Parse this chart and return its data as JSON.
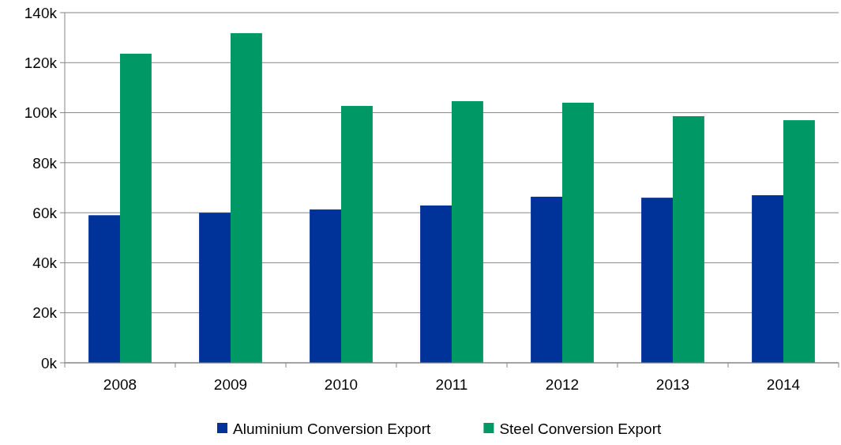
{
  "chart_data": {
    "type": "bar",
    "categories": [
      "2008",
      "2009",
      "2010",
      "2011",
      "2012",
      "2013",
      "2014"
    ],
    "series": [
      {
        "name": "Aluminium Conversion Export",
        "color": "#003399",
        "values": [
          59000,
          60000,
          61300,
          62900,
          66400,
          66000,
          67000
        ]
      },
      {
        "name": "Steel Conversion Export",
        "color": "#009966",
        "values": [
          123600,
          131800,
          102700,
          104600,
          104000,
          98600,
          97000
        ]
      }
    ],
    "ylim": [
      0,
      140000
    ],
    "yticks": [
      {
        "value": 0,
        "label": "0k"
      },
      {
        "value": 20000,
        "label": "20k"
      },
      {
        "value": 40000,
        "label": "40k"
      },
      {
        "value": 60000,
        "label": "60k"
      },
      {
        "value": 80000,
        "label": "80k"
      },
      {
        "value": 100000,
        "label": "100k"
      },
      {
        "value": 120000,
        "label": "120k"
      },
      {
        "value": 140000,
        "label": "140k"
      }
    ],
    "grid": "y",
    "legend": "bottom"
  }
}
